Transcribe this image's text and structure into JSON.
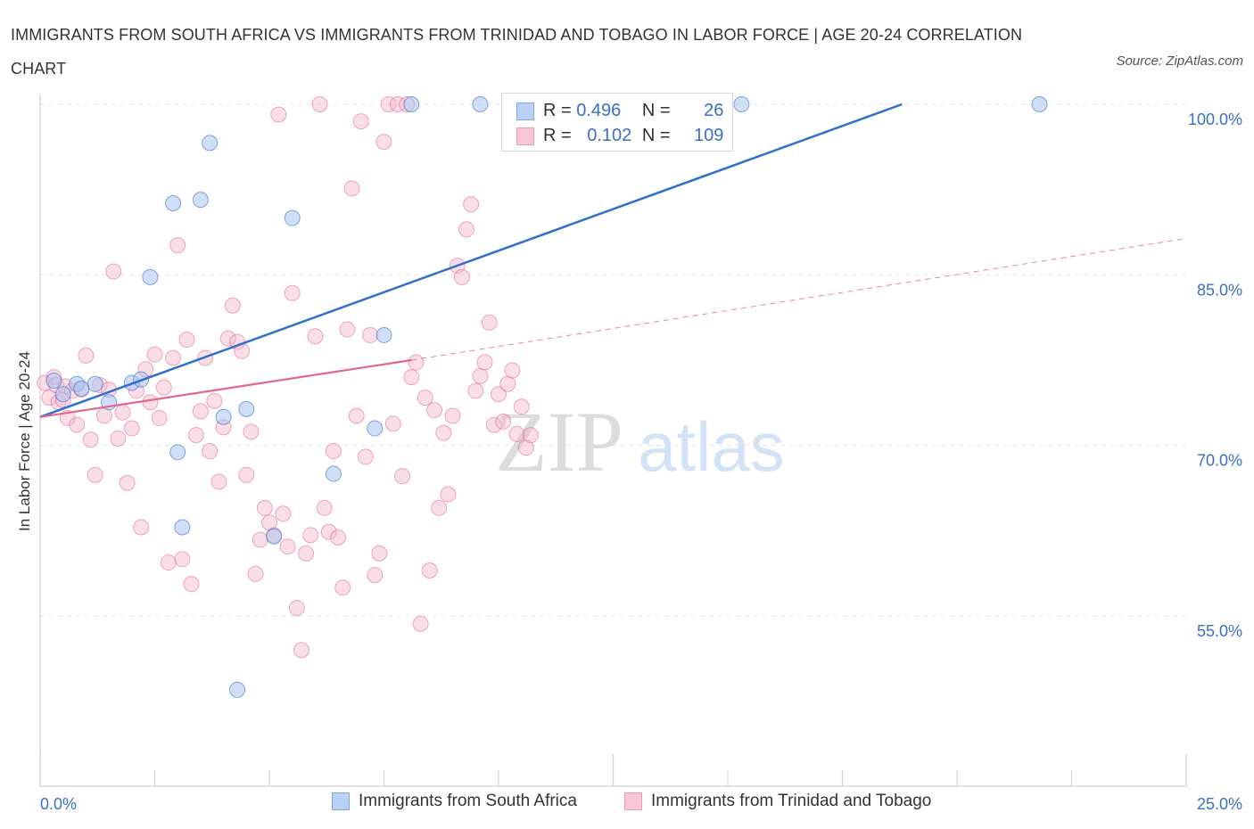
{
  "header": {
    "title": "IMMIGRANTS FROM SOUTH AFRICA VS IMMIGRANTS FROM TRINIDAD AND TOBAGO IN LABOR FORCE | AGE 20-24 CORRELATION CHART",
    "source": "Source: ZipAtlas.com"
  },
  "watermark": {
    "zip": "ZIP",
    "atlas": "atlas"
  },
  "legend": {
    "rows": [
      {
        "r_label": "R =",
        "r_value": "0.496",
        "n_label": "N =",
        "n_value": "26"
      },
      {
        "r_label": "R =",
        "r_value": "0.102",
        "n_label": "N =",
        "n_value": "109"
      }
    ]
  },
  "chart_data": {
    "type": "scatter",
    "title": "IMMIGRANTS FROM SOUTH AFRICA VS IMMIGRANTS FROM TRINIDAD AND TOBAGO IN LABOR FORCE | AGE 20-24 CORRELATION CHART",
    "xlabel": "",
    "ylabel": "In Labor Force | Age 20-24",
    "xlim": [
      0,
      25
    ],
    "ylim": [
      40,
      100
    ],
    "x_tick_labels": [
      "0.0%",
      "25.0%"
    ],
    "y_ticks": [
      55,
      70,
      85,
      100
    ],
    "y_tick_labels": [
      "55.0%",
      "70.0%",
      "85.0%",
      "100.0%"
    ],
    "grid": true,
    "legend_position": "top-center",
    "colors": {
      "south_africa_fill": "#a9c5f0",
      "south_africa_line": "#2f6fce",
      "trinidad_fill": "#f5b5c9",
      "trinidad_line": "#e2658f"
    },
    "series": [
      {
        "name": "Immigrants from South Africa",
        "color": "#2f6fce",
        "x": [
          0.3,
          0.5,
          0.8,
          1.2,
          1.5,
          2.0,
          2.2,
          2.9,
          3.0,
          3.7,
          4.3,
          5.1,
          5.5,
          6.4,
          0.9,
          3.5,
          2.4,
          4.0,
          7.3,
          8.1,
          3.1,
          4.5,
          7.5,
          9.6,
          15.3,
          21.8
        ],
        "y": [
          75.7,
          74.5,
          75.4,
          75.4,
          73.8,
          75.5,
          75.8,
          91.3,
          69.4,
          96.6,
          48.5,
          62.0,
          90.0,
          67.5,
          75.0,
          91.6,
          84.8,
          72.5,
          71.5,
          100.0,
          62.8,
          73.2,
          79.7,
          100.0,
          100.0,
          100.0
        ]
      },
      {
        "name": "Immigrants from Trinidad and Tobago",
        "color": "#e2658f",
        "x": [
          0.1,
          0.2,
          0.3,
          0.35,
          0.4,
          0.5,
          0.55,
          0.6,
          0.7,
          0.8,
          0.9,
          1.0,
          1.1,
          1.2,
          1.3,
          1.4,
          1.5,
          1.6,
          1.7,
          1.8,
          1.9,
          2.0,
          2.1,
          2.2,
          2.3,
          2.4,
          2.5,
          2.6,
          2.7,
          2.8,
          2.9,
          3.0,
          3.1,
          3.2,
          3.3,
          3.4,
          3.5,
          3.6,
          3.7,
          3.8,
          3.9,
          4.0,
          4.1,
          4.2,
          4.3,
          4.4,
          4.5,
          4.6,
          4.7,
          4.8,
          4.9,
          5.0,
          5.1,
          5.2,
          5.3,
          5.4,
          5.5,
          5.6,
          5.7,
          5.8,
          5.9,
          6.0,
          6.1,
          6.2,
          6.3,
          6.4,
          6.5,
          6.6,
          6.7,
          6.8,
          6.9,
          7.0,
          7.1,
          7.2,
          7.3,
          7.4,
          7.5,
          7.6,
          7.7,
          7.8,
          7.9,
          8.0,
          8.1,
          8.2,
          8.3,
          8.4,
          8.5,
          8.6,
          8.7,
          8.8,
          8.9,
          9.0,
          9.1,
          9.2,
          9.3,
          9.4,
          9.5,
          9.6,
          9.7,
          9.8,
          9.9,
          10.0,
          10.1,
          10.2,
          10.3,
          10.4,
          10.5,
          10.6,
          10.7
        ],
        "y": [
          75.5,
          74.2,
          76.0,
          75.3,
          73.8,
          74.0,
          75.2,
          72.4,
          74.8,
          71.8,
          74.9,
          77.9,
          70.5,
          67.4,
          75.3,
          72.6,
          74.9,
          85.3,
          70.6,
          72.9,
          66.7,
          71.5,
          74.8,
          62.8,
          76.7,
          73.8,
          78.0,
          72.4,
          75.1,
          59.7,
          77.7,
          87.6,
          60.0,
          79.3,
          57.8,
          70.9,
          73.0,
          77.7,
          69.5,
          73.9,
          66.8,
          71.6,
          79.4,
          82.3,
          79.1,
          78.3,
          67.4,
          71.2,
          58.7,
          61.7,
          64.5,
          63.2,
          62.1,
          99.1,
          64.0,
          61.1,
          83.4,
          55.7,
          52.0,
          60.5,
          62.1,
          79.6,
          100.0,
          64.5,
          62.4,
          69.5,
          61.9,
          57.5,
          80.2,
          92.6,
          72.6,
          98.5,
          69.0,
          79.7,
          58.6,
          60.5,
          96.7,
          100.0,
          71.9,
          100.0,
          67.3,
          100.0,
          76.0,
          77.3,
          54.3,
          74.2,
          59.0,
          73.1,
          64.5,
          71.1,
          65.7,
          72.6,
          85.8,
          84.8,
          89.0,
          91.2,
          74.8,
          76.1,
          77.3,
          80.8,
          71.8,
          74.5,
          72.1,
          75.4,
          76.6,
          71.0,
          73.4,
          69.8,
          70.9
        ]
      }
    ],
    "trendlines": [
      {
        "series": "Immigrants from South Africa",
        "x": [
          0,
          18.8
        ],
        "y": [
          72.5,
          100.0
        ]
      },
      {
        "series": "Immigrants from Trinidad and Tobago",
        "x": [
          0,
          8.1
        ],
        "y": [
          72.5,
          77.5
        ]
      },
      {
        "series": "Immigrants from Trinidad and Tobago",
        "x": [
          8.1,
          25
        ],
        "y": [
          77.5,
          88.2
        ]
      }
    ]
  },
  "bottom_legend": {
    "items": [
      "Immigrants from South Africa",
      "Immigrants from Trinidad and Tobago"
    ]
  }
}
